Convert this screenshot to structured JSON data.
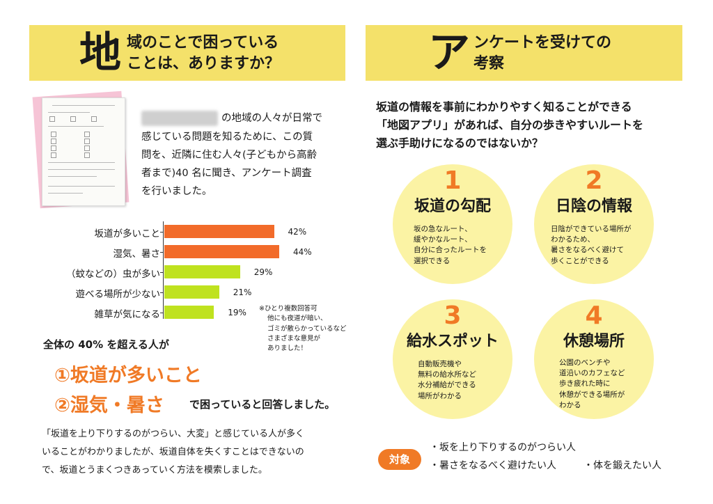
{
  "left": {
    "banner": {
      "big": "地",
      "line1": "域のことで困っている",
      "line2": "ことは、ありますか？"
    },
    "intro": [
      "の地域の人々が日常で",
      "感じている問題を知るために、この質",
      "問を、近隣に住む人々(子どもから高齢",
      "者まで)40 名に聞き、アンケート調査",
      "を行いました。"
    ],
    "note": [
      "※ひとり複数回答可",
      "他にも夜道が暗い、",
      "ゴミが散らかっているなど",
      "さまざまな意見が",
      "ありました！"
    ],
    "lead": "全体の 40% を超える人が",
    "highlight1": "①坂道が多いこと",
    "highlight2": "②湿気・暑さ",
    "answer": "で困っていると回答しました。",
    "paragraph": [
      "「坂道を上り下りするのがつらい、大変」と感じている人が多く",
      "いることがわかりましたが、坂道自体を失くすことはできないの",
      "で、坂道とうまくつきあっていく方法を模索しました。"
    ]
  },
  "chart_data": {
    "type": "bar",
    "orientation": "horizontal",
    "categories": [
      "坂道が多いこと",
      "湿気、暑さ",
      "（蚊などの）虫が多い",
      "遊べる場所が少ない",
      "雑草が気になる"
    ],
    "values": [
      42,
      44,
      29,
      21,
      19
    ],
    "value_labels": [
      "42%",
      "44%",
      "29%",
      "21%",
      "19%"
    ],
    "colors": [
      "#f26b2a",
      "#f26b2a",
      "#bfe21f",
      "#bfe21f",
      "#bfe21f"
    ],
    "unit": "%"
  },
  "right": {
    "banner": {
      "big": "ア",
      "line1": "ンケートを受けての",
      "line2": "考察"
    },
    "question": [
      "坂道の情報を事前にわかりやすく知ることができる",
      "「地図アプリ」があれば、自分の歩きやすいルートを",
      "選ぶ手助けになるのではないか？"
    ],
    "items": [
      {
        "num": "1",
        "title": "坂道の勾配",
        "desc": [
          "坂の急なルート、",
          "緩やかなルート、",
          "自分に合ったルートを",
          "選択できる"
        ]
      },
      {
        "num": "2",
        "title": "日陰の情報",
        "desc": [
          "日陰ができている場所が",
          "わかるため、",
          "暑さをなるべく避けて",
          "歩くことができる"
        ]
      },
      {
        "num": "3",
        "title": "給水スポット",
        "desc": [
          "自動販売機や",
          "無料の給水所など",
          "水分補給ができる",
          "場所がわかる"
        ]
      },
      {
        "num": "4",
        "title": "休憩場所",
        "desc": [
          "公園のベンチや",
          "道沿いのカフェなど",
          "歩き疲れた時に",
          "休憩ができる場所が",
          "わかる"
        ]
      }
    ],
    "target_label": "対象",
    "targets": [
      "・坂を上り下りするのがつらい人",
      "・暑さをなるべく避けたい人",
      "・体を鍛えたい人"
    ]
  },
  "colors": {
    "banner": "#f4e16a",
    "circle": "#fbf3a4",
    "accent": "#f07a26",
    "green": "#bfe21f"
  }
}
